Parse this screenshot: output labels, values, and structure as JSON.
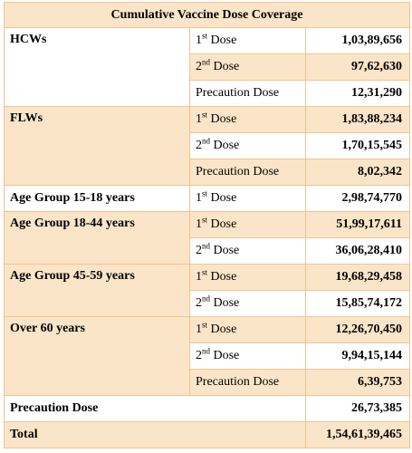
{
  "title": "Cumulative Vaccine Dose Coverage",
  "dose_labels": {
    "first_num": "1",
    "first_sup": "st",
    "second_num": "2",
    "second_sup": "nd",
    "first_text": " Dose",
    "second_text": " Dose",
    "precaution": "Precaution Dose"
  },
  "groups": {
    "hcws": {
      "label": "HCWs",
      "first": "1,03,89,656",
      "second": "97,62,630",
      "precaution": "12,31,290"
    },
    "flws": {
      "label": "FLWs",
      "first": "1,83,88,234",
      "second": "1,70,15,545",
      "precaution": "8,02,342"
    },
    "age_15_18": {
      "label": "Age Group 15-18 years",
      "first": "2,98,74,770"
    },
    "age_18_44": {
      "label": "Age Group 18-44 years",
      "first": "51,99,17,611",
      "second": "36,06,28,410"
    },
    "age_45_59": {
      "label": "Age Group 45-59 years",
      "first": "19,68,29,458",
      "second": "15,85,74,172"
    },
    "over_60": {
      "label": "Over 60 years",
      "first": "12,26,70,450",
      "second": "9,94,15,144",
      "precaution": "6,39,753"
    }
  },
  "precaution_total": {
    "label": "Precaution Dose",
    "value": "26,73,385"
  },
  "total": {
    "label": "Total",
    "value": "1,54,61,39,465"
  }
}
